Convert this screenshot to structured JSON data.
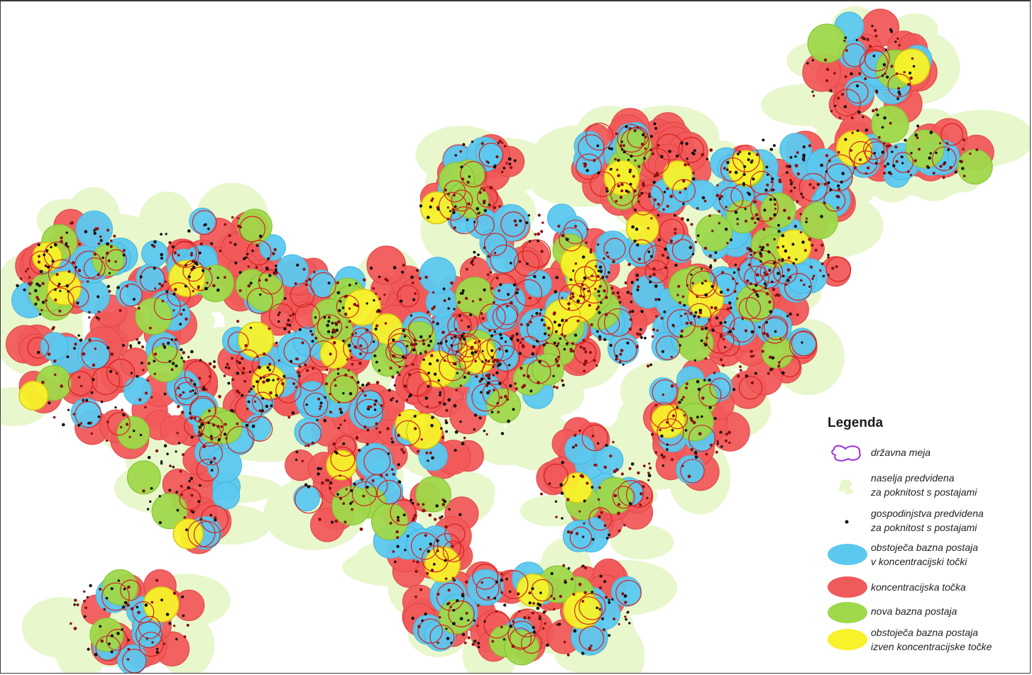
{
  "legend": {
    "title": "Legenda",
    "items": [
      {
        "key": "border",
        "icon": "border-outline-icon",
        "lines": [
          "državna meja"
        ]
      },
      {
        "key": "settlements",
        "icon": "settlement-area-icon",
        "lines": [
          "naselja predvidena",
          "za poknitost s postajami"
        ]
      },
      {
        "key": "households",
        "icon": "household-dot-icon",
        "lines": [
          "gospodinjstva predvidena",
          "za poknitost s postajami"
        ]
      },
      {
        "key": "existing-in",
        "icon": "existing-station-circle-icon",
        "lines": [
          "obstoječa bazna postaja",
          "v koncentracijski točki"
        ]
      },
      {
        "key": "concentration",
        "icon": "concentration-point-circle-icon",
        "lines": [
          "koncentracijska točka"
        ]
      },
      {
        "key": "new",
        "icon": "new-station-circle-icon",
        "lines": [
          "nova bazna postaja"
        ]
      },
      {
        "key": "existing-out",
        "icon": "existing-station-outside-circle-icon",
        "lines": [
          "obstoječa bazna postaja",
          "izven koncentracijske točke"
        ]
      }
    ]
  },
  "colors": {
    "border": "#9b30d9",
    "settlement": "#e8f7cc",
    "household": "#111111",
    "existing": "#5bc8ef",
    "concentration": "#f15a5a",
    "new": "#9fd84a",
    "outside": "#f7f22a",
    "concentration_outline": "#d62020"
  }
}
